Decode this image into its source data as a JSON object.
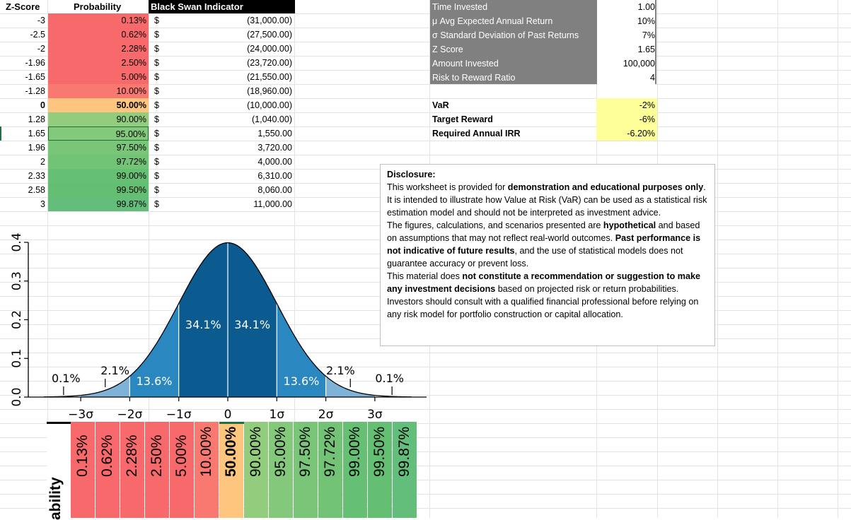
{
  "table": {
    "headers": {
      "zscore": "Z-Score",
      "probability": "Probability",
      "black_swan": "Black Swan Indicator"
    },
    "rows": [
      {
        "z": "-3",
        "p": "0.13%",
        "cur": "$",
        "v": "(31,000.00)",
        "color": "#f8696b"
      },
      {
        "z": "-2.5",
        "p": "0.62%",
        "cur": "$",
        "v": "(27,500.00)",
        "color": "#f8696b"
      },
      {
        "z": "-2",
        "p": "2.28%",
        "cur": "$",
        "v": "(24,000.00)",
        "color": "#f8696b"
      },
      {
        "z": "-1.96",
        "p": "2.50%",
        "cur": "$",
        "v": "(23,720.00)",
        "color": "#f8696b"
      },
      {
        "z": "-1.65",
        "p": "5.00%",
        "cur": "$",
        "v": "(21,550.00)",
        "color": "#f8696b"
      },
      {
        "z": "-1.28",
        "p": "10.00%",
        "cur": "$",
        "v": "(18,960.00)",
        "color": "#f9786f"
      },
      {
        "z": "0",
        "p": "50.00%",
        "cur": "$",
        "v": "(10,000.00)",
        "color": "#fdc57e"
      },
      {
        "z": "1.28",
        "p": "90.00%",
        "cur": "$",
        "v": "(1,040.00)",
        "color": "#92cd7e"
      },
      {
        "z": "1.65",
        "p": "95.00%",
        "cur": "$",
        "v": "1,550.00",
        "color": "#84c87b"
      },
      {
        "z": "1.96",
        "p": "97.50%",
        "cur": "$",
        "v": "3,720.00",
        "color": "#7ac678"
      },
      {
        "z": "2",
        "p": "97.72%",
        "cur": "$",
        "v": "4,000.00",
        "color": "#72c376"
      },
      {
        "z": "2.33",
        "p": "99.00%",
        "cur": "$",
        "v": "6,310.00",
        "color": "#66c074"
      },
      {
        "z": "2.58",
        "p": "99.50%",
        "cur": "$",
        "v": "8,060.00",
        "color": "#64bf73"
      },
      {
        "z": "3",
        "p": "99.87%",
        "cur": "$",
        "v": "11,000.00",
        "color": "#63be7b"
      }
    ]
  },
  "inputs": [
    {
      "label": "Time Invested",
      "value": "1.00"
    },
    {
      "label": "μ Avg Expected Annual Return",
      "value": "10%"
    },
    {
      "label": "σ Standard Deviation of Past Returns",
      "value": "7%"
    },
    {
      "label": "Z Score",
      "value": "1.65"
    },
    {
      "label": "Amount Invested",
      "value": "100,000"
    },
    {
      "label": "Risk to Reward Ratio",
      "value": "4"
    }
  ],
  "results": [
    {
      "label": "VaR",
      "value": "-2%"
    },
    {
      "label": "Target Reward",
      "value": "-6%"
    },
    {
      "label": "Required Annual IRR",
      "value": "-6.20%"
    }
  ],
  "disclosure": {
    "title": "Disclosure:",
    "p1a": "This worksheet is provided for ",
    "p1b": "demonstration and educational purposes only",
    "p1c": ". It is intended to illustrate how Value at Risk (VaR) can be used as a statistical risk estimation model and should not be interpreted as investment advice.",
    "p2a": "The figures, calculations, and scenarios presented are ",
    "p2b": "hypothetical",
    "p2c": " and based on assumptions that may not reflect real-world outcomes. ",
    "p2d": "Past performance is not indicative of future results",
    "p2e": ", and the use of statistical models does not guarantee accuracy or prevent loss.",
    "p3a": "This material does ",
    "p3b": "not constitute a recommendation or suggestion to make any investment decisions",
    "p3c": " based on projected risk or return probabilities.",
    "p4": "Investors should consult with a qualified financial professional before relying on any risk model for portfolio construction or capital allocation."
  },
  "chart_data": {
    "type": "area",
    "y_ticks": [
      "0.0",
      "0.1",
      "0.2",
      "0.3",
      "0.4"
    ],
    "x_ticks": [
      "−3σ",
      "−2σ",
      "−1σ",
      "0",
      "1σ",
      "2σ",
      "3σ"
    ],
    "ylim": [
      0,
      0.4
    ],
    "xlim": [
      -3.9,
      4.0
    ],
    "region_labels": [
      {
        "text": "0.1%",
        "x": -3.3
      },
      {
        "text": "2.1%",
        "x": -2.3
      },
      {
        "text": "13.6%",
        "x": -1.5
      },
      {
        "text": "34.1%",
        "x": -0.5
      },
      {
        "text": "34.1%",
        "x": 0.5
      },
      {
        "text": "13.6%",
        "x": 1.5
      },
      {
        "text": "2.1%",
        "x": 2.3
      },
      {
        "text": "0.1%",
        "x": 3.3
      }
    ],
    "colors": {
      "inner": "#0b5a90",
      "mid": "#2b87c0",
      "outer": "#7fb2d9"
    }
  },
  "heat_strip": {
    "label": "ability",
    "values": [
      "0.13%",
      "0.62%",
      "2.28%",
      "2.50%",
      "5.00%",
      "10.00%",
      "50.00%",
      "90.00%",
      "95.00%",
      "97.50%",
      "97.72%",
      "99.00%",
      "99.50%",
      "99.87%"
    ]
  }
}
